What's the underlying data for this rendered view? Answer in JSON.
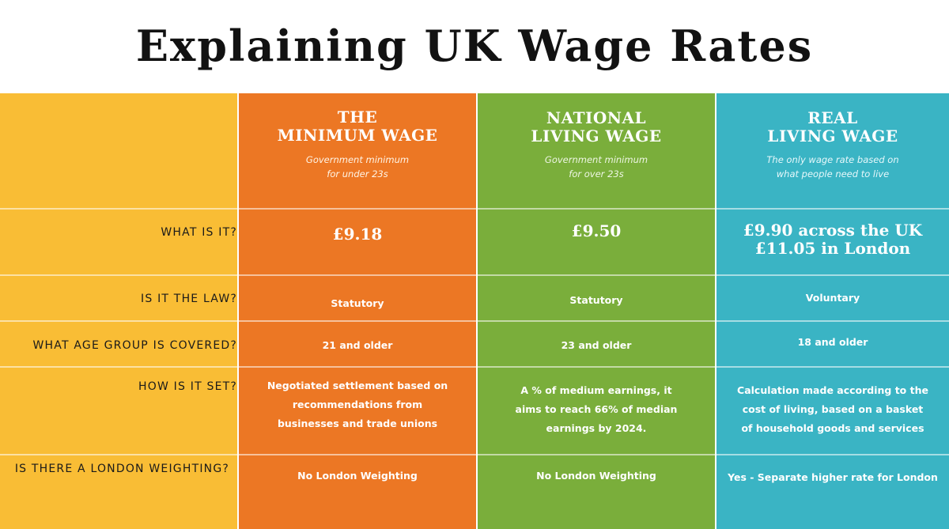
{
  "title": "Explaining UK Wage Rates",
  "colors": {
    "label_column": "#f9bd35",
    "minimum_wage": "#ec7724",
    "national_living_wage": "#7aae3b",
    "real_living_wage": "#3ab4c4"
  },
  "row_labels": [
    "WHAT IS IT?",
    "IS IT THE LAW?",
    "WHAT AGE GROUP IS COVERED?",
    "HOW IS IT SET?",
    "IS THERE A LONDON WEIGHTING?"
  ],
  "columns": [
    {
      "title_line1": "THE",
      "title_line2": "MINIMUM WAGE",
      "sub_line1": "Government minimum",
      "sub_line2": "for under 23s",
      "rate_line1": "£9.18",
      "rate_line2": "",
      "law": "Statutory",
      "age": "21 and older",
      "how": "Negotiated settlement based on recommendations from businesses and trade unions",
      "london": "No London Weighting"
    },
    {
      "title_line1": "NATIONAL",
      "title_line2": "LIVING WAGE",
      "sub_line1": "Government minimum",
      "sub_line2": "for over 23s",
      "rate_line1": "£9.50",
      "rate_line2": "",
      "law": "Statutory",
      "age": "23 and older",
      "how": "A % of medium earnings, it aims to reach 66% of median earnings by 2024.",
      "london": "No London Weighting"
    },
    {
      "title_line1": "REAL",
      "title_line2": "LIVING WAGE",
      "sub_line1": "The only wage rate based on",
      "sub_line2": "what people need to live",
      "rate_line1": "£9.90 across the UK",
      "rate_line2": "£11.05 in London",
      "law": "Voluntary",
      "age": "18 and older",
      "how": "Calculation made according to the cost of living, based on a basket of household goods and services",
      "london": "Yes - Separate higher rate for London"
    }
  ]
}
